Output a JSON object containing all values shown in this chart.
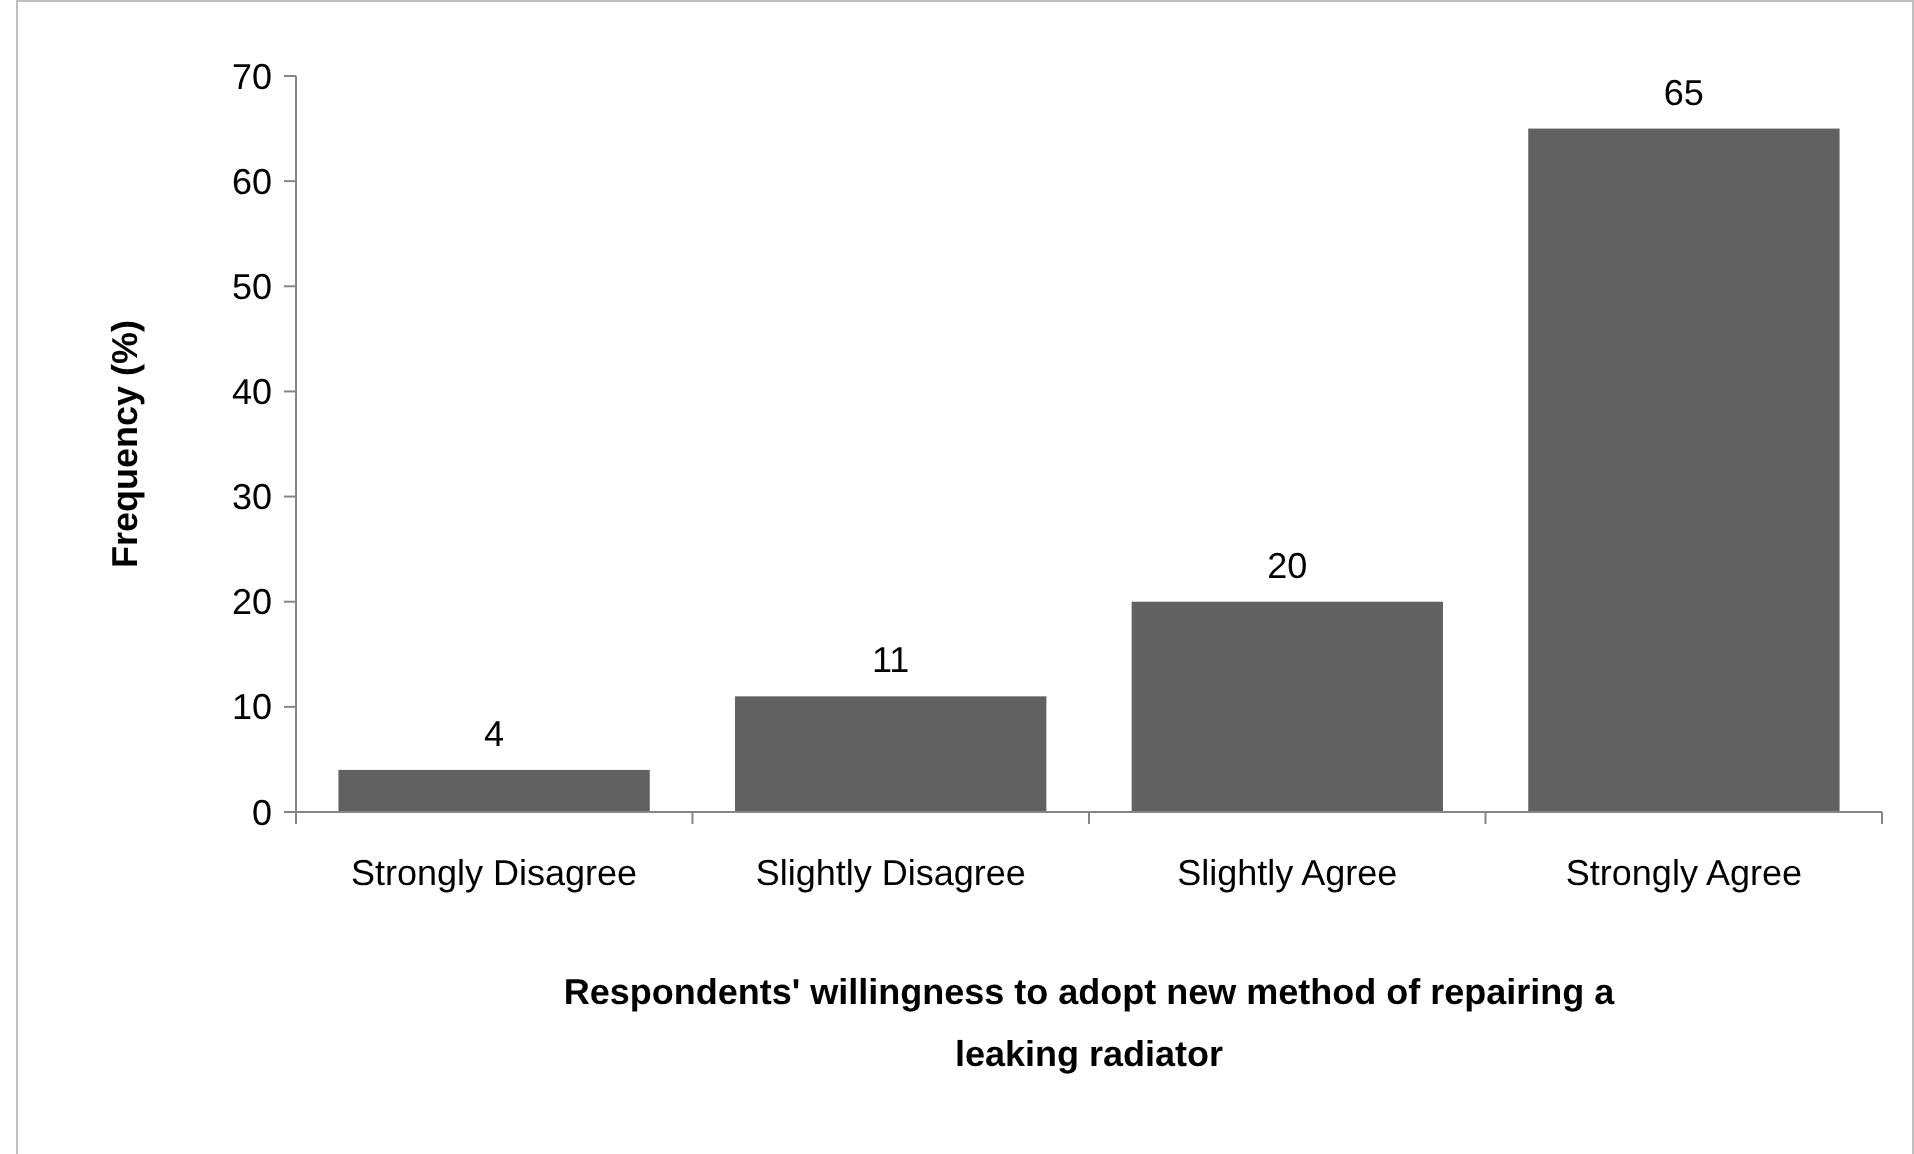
{
  "chart_data": {
    "type": "bar",
    "categories": [
      "Strongly Disagree",
      "Slightly Disagree",
      "Slightly Agree",
      "Strongly Agree"
    ],
    "values": [
      4,
      11,
      20,
      65
    ],
    "color": "#616161",
    "ylim": [
      0,
      70
    ],
    "yticks": [
      0,
      10,
      20,
      30,
      40,
      50,
      60,
      70
    ],
    "ylabel": "Frequency (%)",
    "xlabel": "Respondents' willingness to adopt new method of repairing a leaking radiator",
    "data_labels": true
  }
}
